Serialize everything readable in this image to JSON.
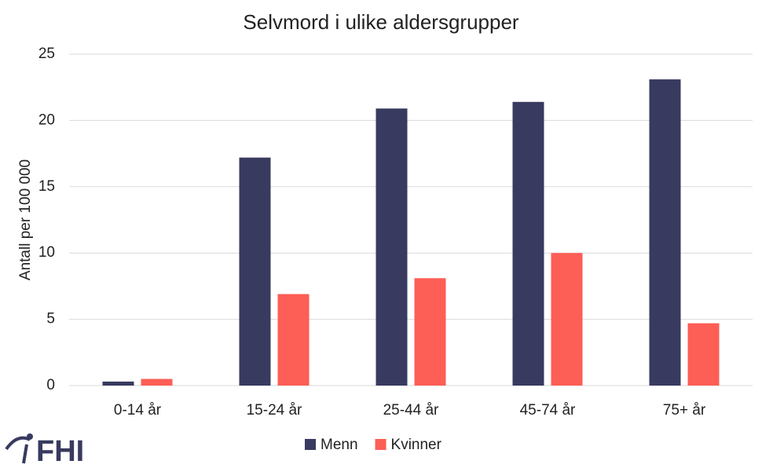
{
  "chart_data": {
    "type": "bar",
    "title": "Selvmord i ulike aldersgrupper",
    "y_label": "Antall per 100 000",
    "categories": [
      "0-14 år",
      "15-24 år",
      "25-44 år",
      "45-74 år",
      "75+ år"
    ],
    "series": [
      {
        "name": "Menn",
        "color": "#383a5f",
        "values": [
          0.3,
          17.2,
          20.9,
          21.4,
          23.1
        ]
      },
      {
        "name": "Kvinner",
        "color": "#fd5e55",
        "values": [
          0.5,
          6.9,
          8.1,
          10.0,
          4.7
        ]
      }
    ],
    "ylim": [
      0,
      25
    ],
    "yticks": [
      0,
      5,
      10,
      15,
      20,
      25
    ],
    "grid": true,
    "legend": "bottom"
  },
  "logo": {
    "text": "FHI"
  }
}
